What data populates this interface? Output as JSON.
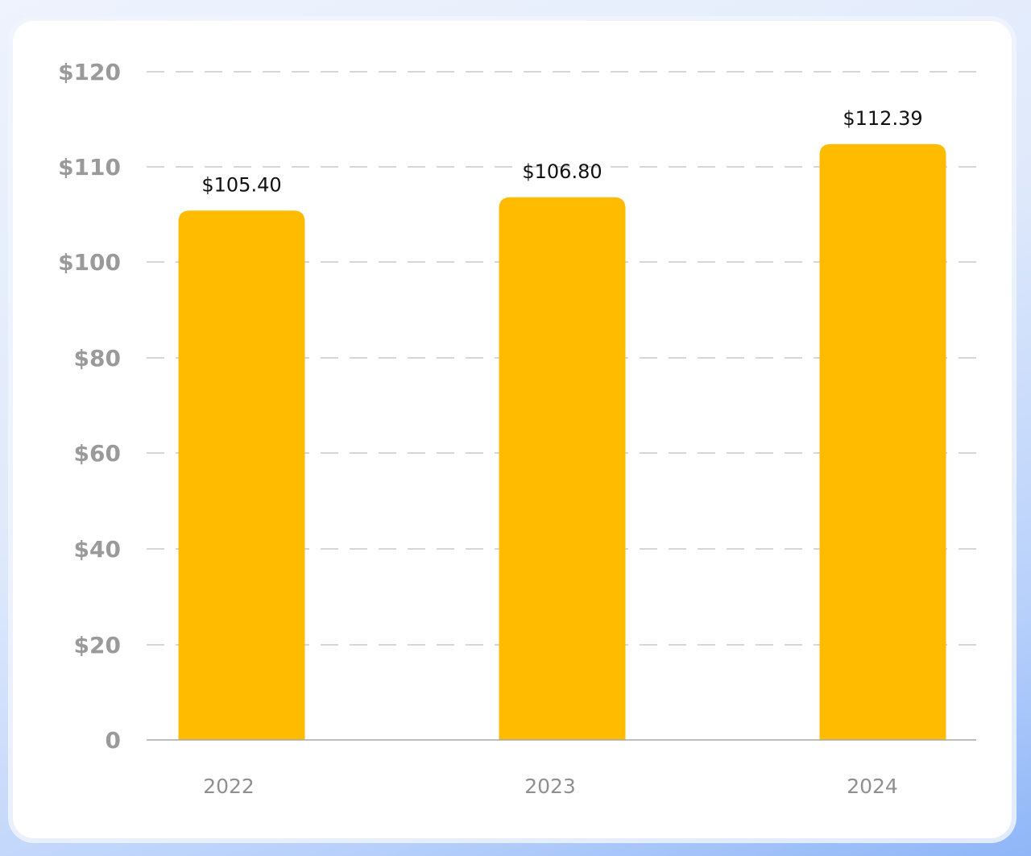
{
  "chart_data": {
    "type": "bar",
    "categories": [
      "2022",
      "2023",
      "2024"
    ],
    "values": [
      105.4,
      106.8,
      112.39
    ],
    "data_labels": [
      "$105.40",
      "$106.80",
      "$112.39"
    ],
    "title": "",
    "xlabel": "",
    "ylabel": "",
    "y_ticks": [
      {
        "value": 0,
        "label": "0"
      },
      {
        "value": 20,
        "label": "$20"
      },
      {
        "value": 40,
        "label": "$40"
      },
      {
        "value": 60,
        "label": "$60"
      },
      {
        "value": 80,
        "label": "$80"
      },
      {
        "value": 100,
        "label": "$100"
      },
      {
        "value": 110,
        "label": "$110"
      },
      {
        "value": 120,
        "label": "$120"
      }
    ],
    "ylim": [
      0,
      120
    ],
    "grid": "dashed horizontal",
    "legend": "none",
    "bar_color": "#FFBB00",
    "grid_color": "#bdbdbd",
    "axis_color": "#a8a8a8"
  }
}
